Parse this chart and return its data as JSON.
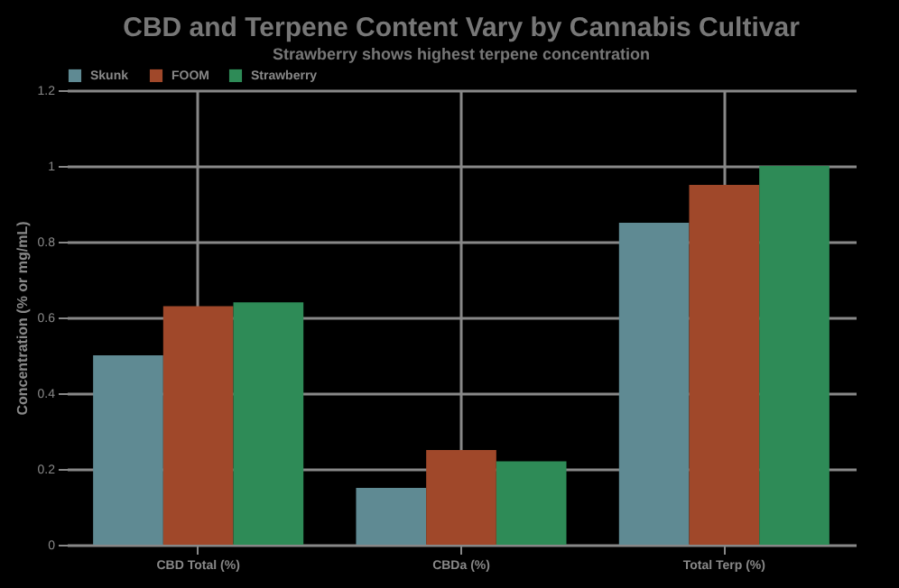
{
  "chart_data": {
    "type": "bar",
    "title": "CBD and Terpene Content Vary by Cannabis Cultivar",
    "subtitle": "Strawberry shows highest terpene concentration",
    "ylabel": "Concentration (% or mg/mL)",
    "categories": [
      "CBD Total (%)",
      "CBDa (%)",
      "Total Terp (%)"
    ],
    "series": [
      {
        "name": "Skunk",
        "color": "#5f8a93",
        "values": [
          0.5,
          0.15,
          0.85
        ]
      },
      {
        "name": "FOOM",
        "color": "#a0482a",
        "values": [
          0.63,
          0.25,
          0.95
        ]
      },
      {
        "name": "Strawberry",
        "color": "#2e8b57",
        "values": [
          0.64,
          0.22,
          1.0
        ]
      }
    ],
    "ylim": [
      0,
      1.2
    ],
    "yticks": [
      0,
      0.2,
      0.4,
      0.6,
      0.8,
      1,
      1.2
    ],
    "grid": true,
    "legend": "top"
  }
}
